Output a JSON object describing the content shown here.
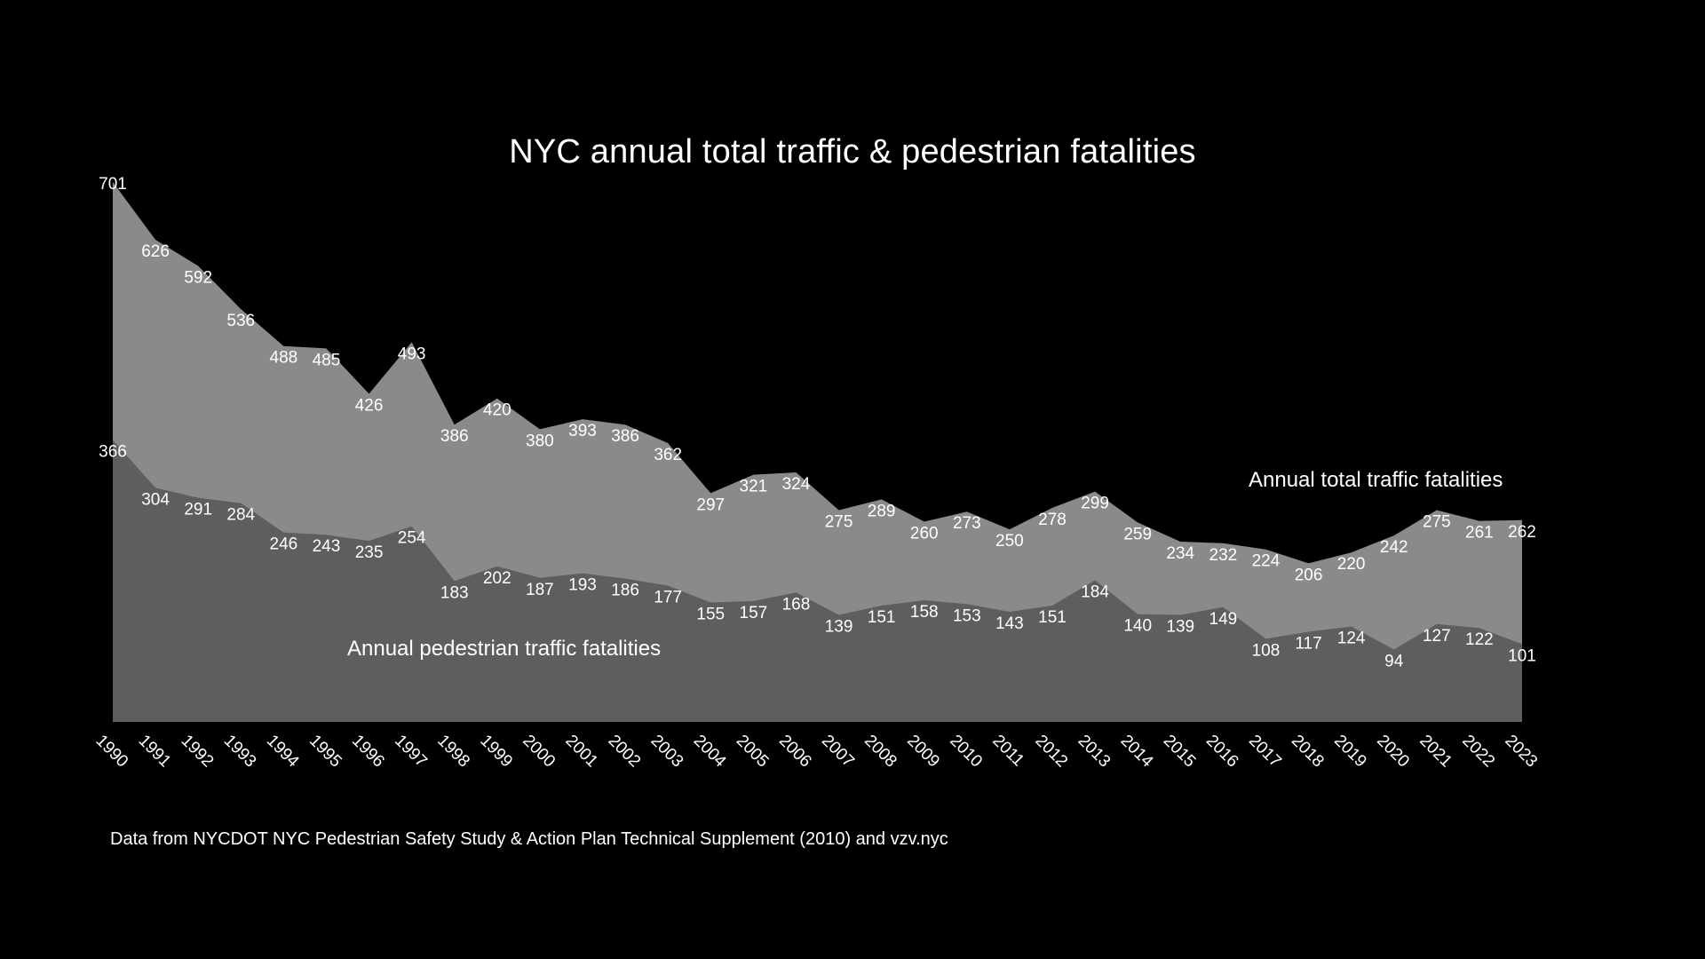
{
  "chart_data": {
    "type": "area",
    "title": "NYC annual total traffic & pedestrian fatalities",
    "xlabel": "",
    "ylabel": "",
    "ylim": [
      0,
      701
    ],
    "grid": false,
    "legend": "inline labels",
    "x": [
      "1990",
      "1991",
      "1992",
      "1993",
      "1994",
      "1995",
      "1996",
      "1997",
      "1998",
      "1999",
      "2000",
      "2001",
      "2002",
      "2003",
      "2004",
      "2005",
      "2006",
      "2007",
      "2008",
      "2009",
      "2010",
      "2011",
      "2012",
      "2013",
      "2014",
      "2015",
      "2016",
      "2017",
      "2018",
      "2019",
      "2020",
      "2021",
      "2022",
      "2023"
    ],
    "series": [
      {
        "name": "Annual total traffic fatalities",
        "color": "#8a8a8a",
        "values": [
          701,
          626,
          592,
          536,
          488,
          485,
          426,
          493,
          386,
          420,
          380,
          393,
          386,
          362,
          297,
          321,
          324,
          275,
          289,
          260,
          273,
          250,
          278,
          299,
          259,
          234,
          232,
          224,
          206,
          220,
          242,
          275,
          261,
          262
        ]
      },
      {
        "name": "Annual pedestrian traffic fatalities",
        "color": "#5e5e5e",
        "values": [
          366,
          304,
          291,
          284,
          246,
          243,
          235,
          254,
          183,
          202,
          187,
          193,
          186,
          177,
          155,
          157,
          168,
          139,
          151,
          158,
          153,
          143,
          151,
          184,
          140,
          139,
          149,
          108,
          117,
          124,
          94,
          127,
          122,
          101
        ]
      }
    ]
  },
  "source_note": "Data from NYCDOT NYC Pedestrian Safety Study & Action Plan Technical Supplement (2010) and vzv.nyc"
}
